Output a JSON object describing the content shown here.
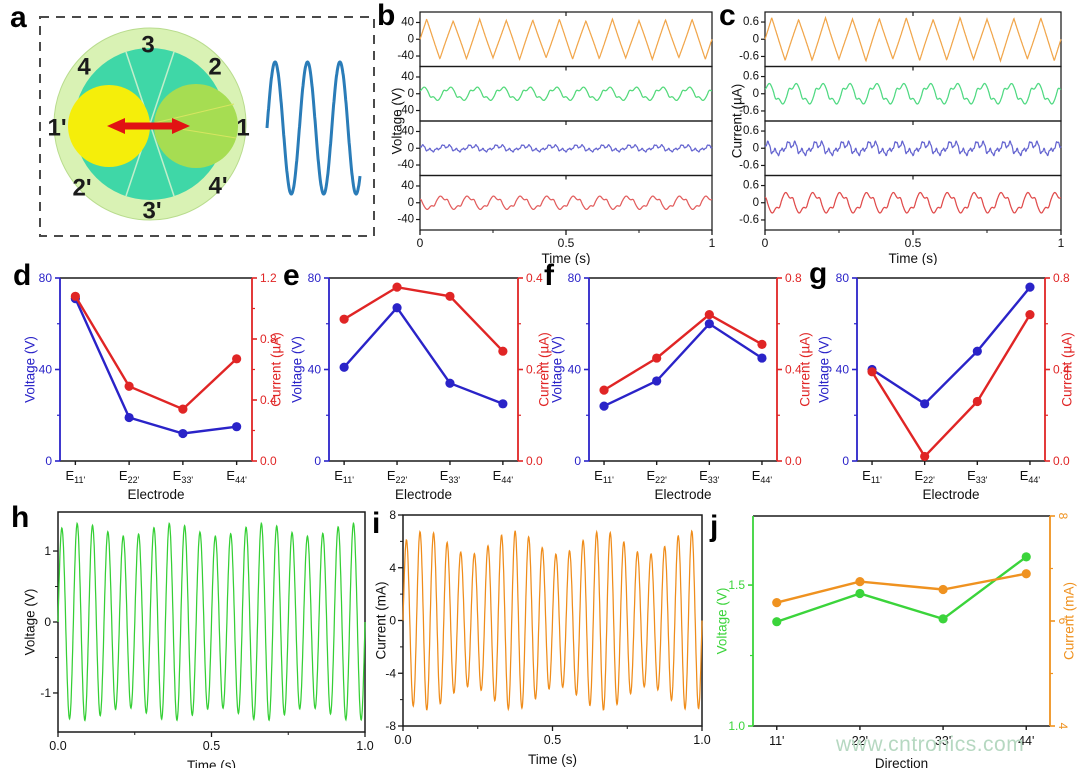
{
  "watermark": {
    "text": "www.cntronics.com",
    "color": "#b6d8c1"
  },
  "diagram": {
    "panel_label": "a",
    "sector_labels": [
      "3",
      "2",
      "1",
      "4'",
      "3'",
      "2'",
      "1'",
      "4"
    ],
    "wave_cycles": 3,
    "colors": {
      "ring": "#d9f2b4",
      "disk": "#3fd7a7",
      "left_circle": "#f5ee0a",
      "right_circle": "#a6dd52",
      "arrow": "#e11313",
      "divider": "#c2eecb",
      "inner_rays": "#d6e560",
      "wave": "#2a7cb8",
      "border": "#4a4a4a"
    }
  },
  "chart_data": [
    {
      "id": "b",
      "panel_label": "b",
      "type": "line",
      "xlabel": "Time (s)",
      "ylabel": "Voltage (V)",
      "x_range": [
        0,
        1
      ],
      "xtick_values": [
        0,
        0.5,
        1
      ],
      "xtick_labels": [
        "0",
        "0.5",
        "1"
      ],
      "xminor_values": [
        0.25,
        0.75
      ],
      "y_range": [
        -65,
        65
      ],
      "ytick_values": [
        40,
        0,
        -40
      ],
      "ytick_labels": [
        "40",
        "0",
        "-40"
      ],
      "series": [
        {
          "color": "#f1a64b",
          "shape": "triangle",
          "amplitude": 46,
          "cycles": 11
        },
        {
          "color": "#52d97a",
          "shape": "clipped",
          "amplitude": 16,
          "cycles": 11
        },
        {
          "color": "#6565d0",
          "shape": "noisy",
          "amplitude": 9,
          "cycles": 11
        },
        {
          "color": "#e25d5d",
          "shape": "clipped",
          "amplitude": 16,
          "cycles": 11
        }
      ]
    },
    {
      "id": "c",
      "panel_label": "c",
      "type": "line",
      "xlabel": "Time (s)",
      "ylabel": "Current (µA)",
      "x_range": [
        0,
        1
      ],
      "xtick_values": [
        0,
        0.5,
        1
      ],
      "xtick_labels": [
        "0",
        "0.5",
        "1"
      ],
      "xminor_values": [
        0.25,
        0.75
      ],
      "y_range": [
        -0.95,
        0.95
      ],
      "ytick_values": [
        0.6,
        0,
        -0.6
      ],
      "ytick_labels": [
        "0.6",
        "0",
        "-0.6"
      ],
      "series": [
        {
          "color": "#f1a64b",
          "shape": "triangle",
          "amplitude": 0.72,
          "cycles": 11
        },
        {
          "color": "#4fd982",
          "shape": "clipped",
          "amplitude": 0.36,
          "cycles": 11
        },
        {
          "color": "#6565d0",
          "shape": "noisy",
          "amplitude": 0.26,
          "cycles": 11
        },
        {
          "color": "#e04b4b",
          "shape": "clipped",
          "amplitude": 0.36,
          "cycles": 11
        }
      ]
    },
    {
      "id": "d",
      "panel_label": "d",
      "type": "line",
      "xlabel": "Electrode",
      "category_prefix": "E",
      "categories": [
        "11'",
        "22'",
        "33'",
        "44'"
      ],
      "left_axis": {
        "label": "Voltage (V)",
        "color": "#2a23c8",
        "range": [
          0,
          80
        ],
        "tick_values": [
          0,
          40,
          80
        ],
        "tick_labels": [
          "0",
          "40",
          "80"
        ],
        "minor_values": [
          20,
          60
        ]
      },
      "right_axis": {
        "label": "Current (µA)",
        "color": "#e02525",
        "range": [
          0,
          1.2
        ],
        "tick_values": [
          0,
          0.4,
          0.8,
          1.2
        ],
        "tick_labels": [
          "0.0",
          "0.4",
          "0.8",
          "1.2"
        ],
        "minor_values": [
          0.2,
          0.6,
          1.0
        ]
      },
      "series": [
        {
          "axis": "left",
          "color": "#2a23c8",
          "values": [
            71,
            19,
            12,
            15
          ]
        },
        {
          "axis": "right",
          "color": "#e02525",
          "values": [
            1.08,
            0.49,
            0.34,
            0.67
          ]
        }
      ]
    },
    {
      "id": "e",
      "panel_label": "e",
      "type": "line",
      "xlabel": "Electrode",
      "category_prefix": "E",
      "categories": [
        "11'",
        "22'",
        "33'",
        "44'"
      ],
      "left_axis": {
        "label": "Voltage (V)",
        "color": "#2a23c8",
        "range": [
          0,
          80
        ],
        "tick_values": [
          0,
          40,
          80
        ],
        "tick_labels": [
          "0",
          "40",
          "80"
        ],
        "minor_values": [
          20,
          60
        ]
      },
      "right_axis": {
        "label": "Current (µA)",
        "color": "#e02525",
        "range": [
          0,
          0.4
        ],
        "tick_values": [
          0,
          0.2,
          0.4
        ],
        "tick_labels": [
          "0.0",
          "0.2",
          "0.4"
        ],
        "minor_values": [
          0.1,
          0.3
        ]
      },
      "series": [
        {
          "axis": "left",
          "color": "#2a23c8",
          "values": [
            41,
            67,
            34,
            25
          ]
        },
        {
          "axis": "right",
          "color": "#e02525",
          "values": [
            0.31,
            0.38,
            0.36,
            0.24
          ]
        }
      ]
    },
    {
      "id": "f",
      "panel_label": "f",
      "type": "line",
      "xlabel": "Electrode",
      "category_prefix": "E",
      "categories": [
        "11'",
        "22'",
        "33'",
        "44'"
      ],
      "left_axis": {
        "label": "Voltage (V)",
        "color": "#2a23c8",
        "range": [
          0,
          80
        ],
        "tick_values": [
          0,
          40,
          80
        ],
        "tick_labels": [
          "0",
          "40",
          "80"
        ],
        "minor_values": [
          20,
          60
        ]
      },
      "right_axis": {
        "label": "Current (µA)",
        "color": "#e02525",
        "range": [
          0,
          0.8
        ],
        "tick_values": [
          0,
          0.4,
          0.8
        ],
        "tick_labels": [
          "0.0",
          "0.4",
          "0.8"
        ],
        "minor_values": [
          0.2,
          0.6
        ]
      },
      "series": [
        {
          "axis": "left",
          "color": "#2a23c8",
          "values": [
            24,
            35,
            60,
            45
          ]
        },
        {
          "axis": "right",
          "color": "#e02525",
          "values": [
            0.31,
            0.45,
            0.64,
            0.51
          ]
        }
      ]
    },
    {
      "id": "g",
      "panel_label": "g",
      "type": "line",
      "xlabel": "Electrode",
      "category_prefix": "E",
      "categories": [
        "11'",
        "22'",
        "33'",
        "44'"
      ],
      "left_axis": {
        "label": "Voltage (V)",
        "color": "#2a23c8",
        "range": [
          0,
          80
        ],
        "tick_values": [
          0,
          40,
          80
        ],
        "tick_labels": [
          "0",
          "40",
          "80"
        ],
        "minor_values": [
          20,
          60
        ]
      },
      "right_axis": {
        "label": "Current (µA)",
        "color": "#e02525",
        "range": [
          0,
          0.8
        ],
        "tick_values": [
          0,
          0.4,
          0.8
        ],
        "tick_labels": [
          "0.0",
          "0.4",
          "0.8"
        ],
        "minor_values": [
          0.2,
          0.6
        ]
      },
      "series": [
        {
          "axis": "left",
          "color": "#2a23c8",
          "values": [
            40,
            25,
            48,
            76
          ]
        },
        {
          "axis": "right",
          "color": "#e02525",
          "values": [
            0.39,
            0.02,
            0.26,
            0.64
          ]
        }
      ]
    },
    {
      "id": "h",
      "panel_label": "h",
      "type": "line",
      "xlabel": "Time (s)",
      "ylabel": "Voltage (V)",
      "x_range": [
        0,
        1
      ],
      "xtick_values": [
        0,
        0.5,
        1
      ],
      "xtick_labels": [
        "0.0",
        "0.5",
        "1.0"
      ],
      "xminor_values": [
        0.25,
        0.75
      ],
      "y_range": [
        -1.55,
        1.55
      ],
      "ytick_values": [
        1,
        0,
        -1
      ],
      "ytick_labels": [
        "1",
        "0",
        "-1"
      ],
      "yminor_values": [
        0.5,
        -0.5
      ],
      "series": [
        {
          "color": "#35cf35",
          "shape": "sine",
          "amplitude": 1.3,
          "cycles": 20,
          "env": 0.07
        }
      ]
    },
    {
      "id": "i",
      "panel_label": "i",
      "type": "line",
      "xlabel": "Time (s)",
      "ylabel": "Current (mA)",
      "x_range": [
        0,
        1
      ],
      "xtick_values": [
        0,
        0.5,
        1
      ],
      "xtick_labels": [
        "0.0",
        "0.5",
        "1.0"
      ],
      "xminor_values": [
        0.25,
        0.75
      ],
      "y_range": [
        -8,
        8
      ],
      "ytick_values": [
        8,
        4,
        0,
        -4,
        -8
      ],
      "ytick_labels": [
        "8",
        "4",
        "0",
        "-4",
        "-8"
      ],
      "yminor_values": [
        6,
        2,
        -2,
        -6
      ],
      "series": [
        {
          "color": "#ef8c1a",
          "shape": "sine",
          "amplitude": 5.9,
          "cycles": 22,
          "env": 0.15
        }
      ]
    },
    {
      "id": "j",
      "panel_label": "j",
      "type": "line",
      "xlabel": "Direction",
      "categories": [
        "11'",
        "22'",
        "33'",
        "44'"
      ],
      "left_axis": {
        "label": "Voltage (V)",
        "color": "#3bd43b",
        "range": [
          1.0,
          1.745
        ],
        "tick_values": [
          1.0,
          1.5
        ],
        "tick_labels": [
          "1.0",
          "1.5"
        ],
        "minor_values": [
          1.25
        ]
      },
      "right_axis": {
        "label": "Current (mA)",
        "color": "#ef9220",
        "range": [
          4,
          8
        ],
        "tick_values": [
          4,
          6,
          8
        ],
        "tick_labels": [
          "4",
          "6",
          "8"
        ],
        "minor_values": [
          5,
          7
        ],
        "rotated_ticks": true
      },
      "series": [
        {
          "axis": "left",
          "color": "#3bd43b",
          "values": [
            1.37,
            1.47,
            1.38,
            1.6
          ]
        },
        {
          "axis": "right",
          "color": "#ef9220",
          "values": [
            6.35,
            6.75,
            6.6,
            6.9
          ]
        }
      ]
    }
  ]
}
